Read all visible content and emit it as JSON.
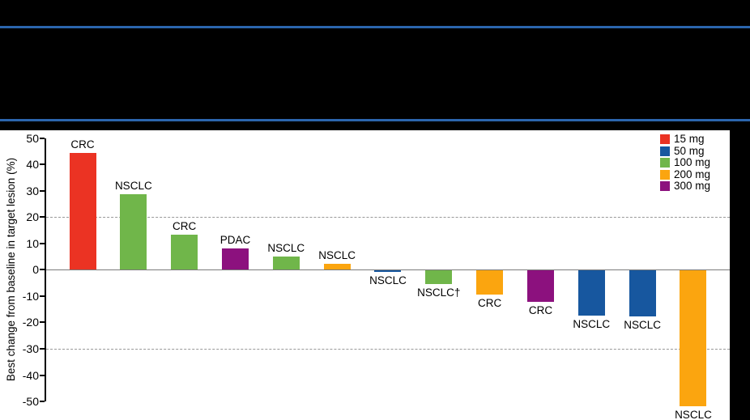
{
  "page": {
    "background": "#000000",
    "rule_color": "#2B65AD",
    "panel_bg": "#FFFFFF"
  },
  "chart_data": {
    "type": "bar",
    "subtype": "waterfall",
    "title": "",
    "ylabel": "Best change from baseline in target lesion (%)",
    "ylim": [
      -50,
      50
    ],
    "yticks": [
      50,
      40,
      30,
      20,
      10,
      0,
      -10,
      -20,
      -30,
      -40,
      -50
    ],
    "grid": "off",
    "zero_line": true,
    "reference_lines": [
      {
        "y": 20,
        "style": "dashed",
        "color": "#999999"
      },
      {
        "y": -30,
        "style": "dashed",
        "color": "#999999"
      }
    ],
    "legend": {
      "position": "top-right",
      "entries": [
        {
          "label": "15 mg",
          "color": "#EB3323"
        },
        {
          "label": "50 mg",
          "color": "#17579F"
        },
        {
          "label": "100 mg",
          "color": "#70B64A"
        },
        {
          "label": "200 mg",
          "color": "#FBA50F"
        },
        {
          "label": "300 mg",
          "color": "#8C117E"
        }
      ]
    },
    "bars": [
      {
        "label": "CRC",
        "dose": "15 mg",
        "value": 44.5
      },
      {
        "label": "NSCLC",
        "dose": "100 mg",
        "value": 28.6
      },
      {
        "label": "CRC",
        "dose": "100 mg",
        "value": 13.2
      },
      {
        "label": "PDAC",
        "dose": "300 mg",
        "value": 8.0
      },
      {
        "label": "NSCLC",
        "dose": "100 mg",
        "value": 5.0
      },
      {
        "label": "NSCLC",
        "dose": "200 mg",
        "value": 2.3
      },
      {
        "label": "NSCLC",
        "dose": "50 mg",
        "value": -0.9
      },
      {
        "label": "NSCLC†",
        "dose": "100 mg",
        "value": -5.5
      },
      {
        "label": "CRC",
        "dose": "200 mg",
        "value": -9.5
      },
      {
        "label": "CRC",
        "dose": "300 mg",
        "value": -12.2
      },
      {
        "label": "NSCLC",
        "dose": "50 mg",
        "value": -17.5
      },
      {
        "label": "NSCLC",
        "dose": "50 mg",
        "value": -17.8
      },
      {
        "label": "NSCLC",
        "dose": "200 mg",
        "value": -51.7
      }
    ]
  }
}
